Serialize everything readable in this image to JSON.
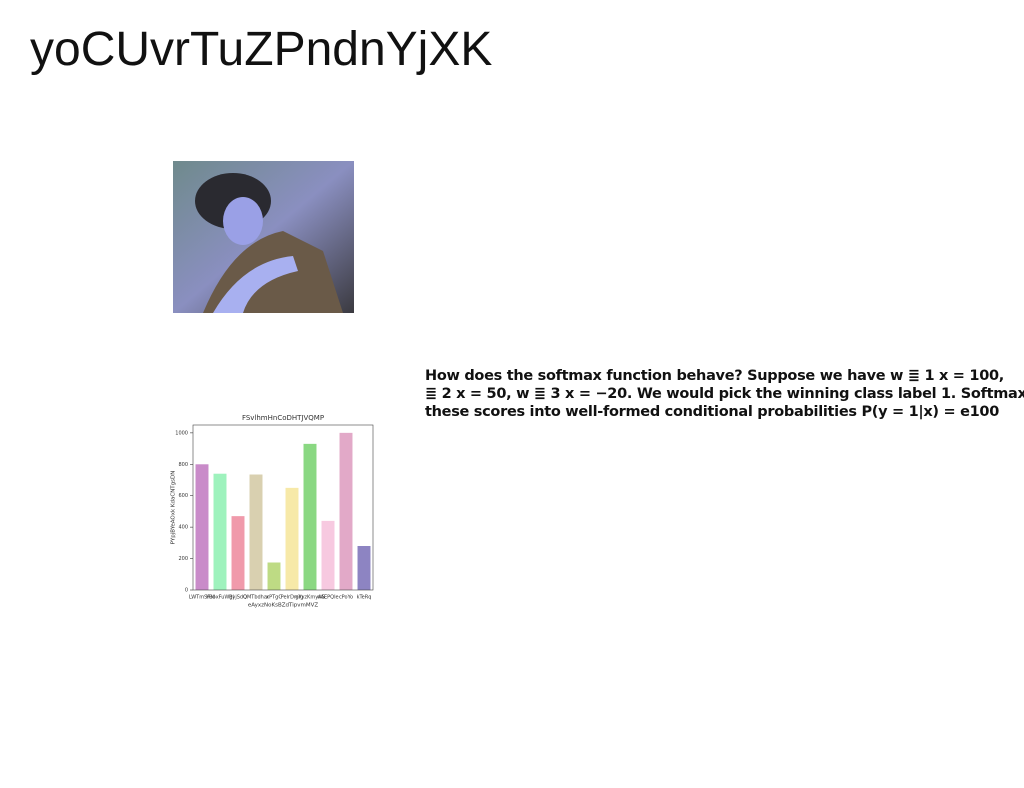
{
  "header": {
    "title": "yoCUvrTuZPndnYjXK"
  },
  "paragraph": {
    "lines": [
      "How does the softmax function behave? Suppose we have w ≣ 1 x = 100,",
      "≣ 2 x = 50, w ≣ 3 x = −20. We would pick the winning class label 1. Softmax",
      "these scores into well-formed conditional probabilities P(y = 1|x) = e100"
    ]
  },
  "chart_data": {
    "type": "bar",
    "title": "FSvlhmHnCoDHTJVQMP",
    "x_label": "eAyxzNoKsBZdTipvmMVZ",
    "y_label": "PYpjBYeAOxk KdaCNTgsDN",
    "categories": [
      "LWTmSRxl",
      "YBbxFuWgl",
      "ByjSdQ",
      "QMTbdhar",
      "xPTgC",
      "PeIrDmlg",
      "gYyzKmyAS",
      "nAEPQIe",
      "cPoYo",
      "kTeRq"
    ],
    "values": [
      800,
      740,
      470,
      735,
      175,
      650,
      930,
      440,
      1000,
      280
    ],
    "colors": [
      "#c98bc9",
      "#9ef2bd",
      "#f09aab",
      "#d9d0b0",
      "#bedb84",
      "#f7e9a8",
      "#8ad882",
      "#f7c9e0",
      "#e2a9c8",
      "#8d84c2"
    ],
    "ylim": [
      0,
      1050
    ],
    "yticks": [
      0,
      200,
      400,
      600,
      800,
      1000
    ]
  }
}
